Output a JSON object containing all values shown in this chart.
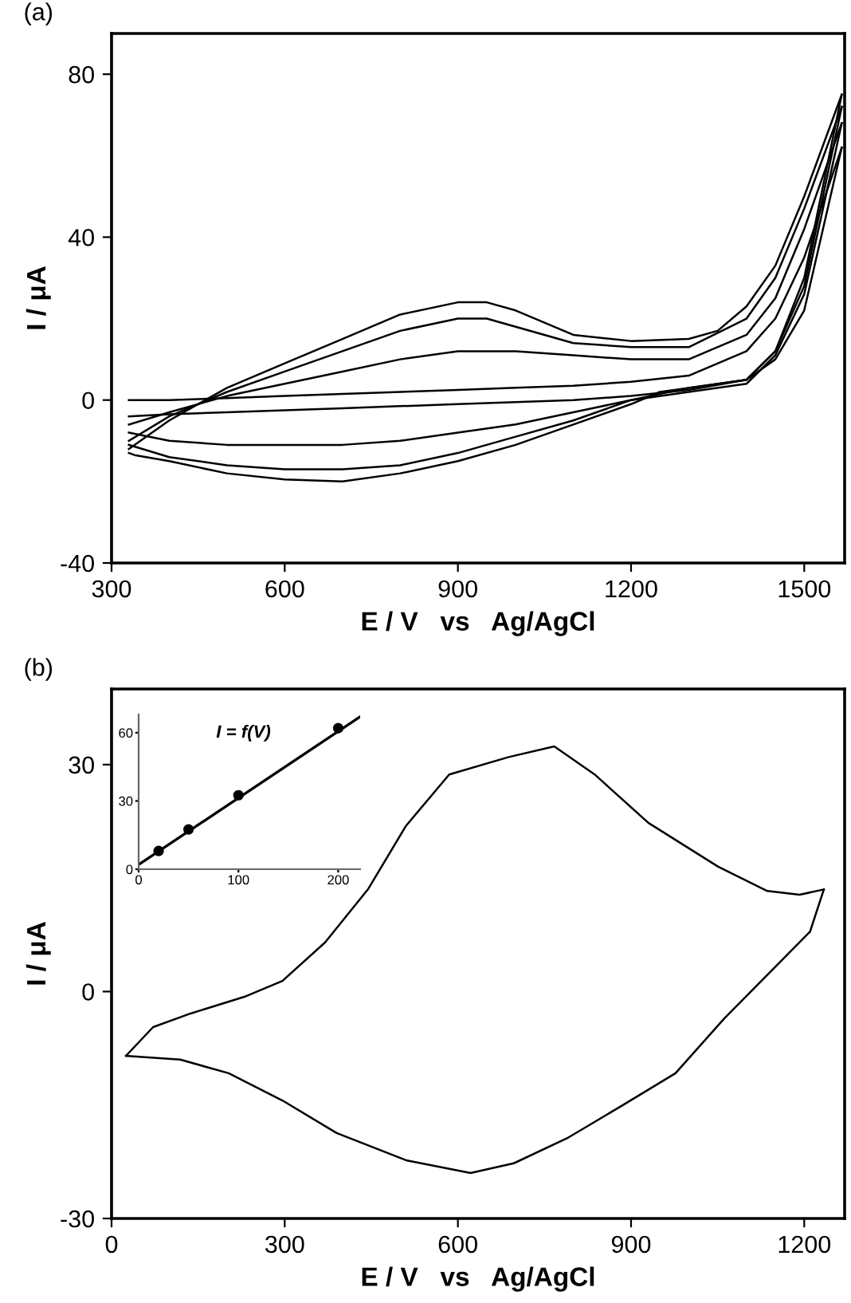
{
  "chart_data": [
    {
      "type": "line",
      "title": "(a)",
      "xlabel": "E / V   vs   Ag/AgCl",
      "ylabel": "I / μA",
      "xlim": [
        300,
        1570
      ],
      "ylim": [
        -40,
        90
      ],
      "xticks": [
        300,
        600,
        900,
        1200,
        1500
      ],
      "yticks": [
        -40,
        0,
        40,
        80
      ],
      "grid": false,
      "legend": false,
      "marker": "none",
      "line_style": "solid",
      "series": [
        {
          "color": "#000000",
          "x": [
            330,
            400,
            500,
            600,
            700,
            800,
            900,
            1000,
            1100,
            1200,
            1300,
            1400,
            1450,
            1500,
            1565
          ],
          "values": [
            0,
            0,
            0.5,
            1,
            1.5,
            2,
            2.5,
            3,
            3.5,
            4.5,
            6,
            12,
            20,
            35,
            62
          ]
        },
        {
          "color": "#000000",
          "x": [
            1565,
            1500,
            1450,
            1400,
            1300,
            1200,
            1100,
            1000,
            900,
            800,
            700,
            600,
            500,
            400,
            330
          ],
          "values": [
            62,
            22,
            10,
            5,
            2.5,
            1,
            0,
            -0.5,
            -1,
            -1.5,
            -2,
            -2.5,
            -3,
            -3.5,
            -4
          ]
        },
        {
          "color": "#000000",
          "x": [
            330,
            400,
            500,
            600,
            700,
            800,
            900,
            1000,
            1100,
            1200,
            1300,
            1400,
            1450,
            1500,
            1565
          ],
          "values": [
            -6,
            -3,
            1,
            4,
            7,
            10,
            12,
            12,
            11,
            10,
            10,
            16,
            25,
            42,
            68
          ]
        },
        {
          "color": "#000000",
          "x": [
            1565,
            1500,
            1450,
            1400,
            1300,
            1200,
            1100,
            1000,
            900,
            800,
            700,
            600,
            500,
            400,
            330
          ],
          "values": [
            68,
            26,
            11,
            4,
            2,
            0,
            -3,
            -6,
            -8,
            -10,
            -11,
            -11,
            -11,
            -10,
            -8
          ]
        },
        {
          "color": "#000000",
          "x": [
            330,
            400,
            500,
            600,
            700,
            800,
            900,
            950,
            1000,
            1100,
            1200,
            1300,
            1400,
            1450,
            1500,
            1565
          ],
          "values": [
            -10,
            -4,
            2,
            7,
            12,
            17,
            20,
            20,
            18,
            14,
            13,
            13,
            20,
            30,
            47,
            72
          ]
        },
        {
          "color": "#000000",
          "x": [
            1565,
            1500,
            1450,
            1400,
            1300,
            1200,
            1100,
            1000,
            900,
            800,
            700,
            600,
            500,
            400,
            330
          ],
          "values": [
            72,
            28,
            12,
            5,
            3,
            0,
            -5,
            -9,
            -13,
            -16,
            -17,
            -17,
            -16,
            -14,
            -11
          ]
        },
        {
          "color": "#000000",
          "x": [
            330,
            400,
            500,
            600,
            700,
            800,
            900,
            950,
            1000,
            1050,
            1100,
            1200,
            1300,
            1350,
            1400,
            1450,
            1500,
            1565
          ],
          "values": [
            -12,
            -5,
            3,
            9,
            15,
            21,
            24,
            24,
            22,
            19,
            16,
            14.5,
            15,
            17,
            23,
            33,
            50,
            75
          ]
        },
        {
          "color": "#000000",
          "x": [
            1565,
            1500,
            1450,
            1400,
            1300,
            1250,
            1200,
            1100,
            1000,
            900,
            800,
            700,
            600,
            500,
            400,
            340,
            330
          ],
          "values": [
            75,
            30,
            12,
            5,
            3,
            2,
            -1,
            -6,
            -11,
            -15,
            -18,
            -20,
            -19.5,
            -18,
            -15,
            -13.5,
            -13
          ]
        }
      ]
    },
    {
      "type": "line",
      "title": "(b)",
      "xlabel": "E / V   vs   Ag/AgCl",
      "ylabel": "I / μA",
      "xlim": [
        0,
        1270
      ],
      "ylim": [
        -30,
        40
      ],
      "xticks": [
        0,
        300,
        600,
        900,
        1200
      ],
      "yticks": [
        -30,
        0,
        30
      ],
      "grid": false,
      "legend": false,
      "marker": "none",
      "line_style": "solid",
      "series": [
        {
          "color": "#000000",
          "x": [
            25,
            72,
            137,
            230,
            296,
            370,
            445,
            510,
            585,
            688,
            767,
            837,
            930,
            1051,
            1136,
            1192,
            1234
          ],
          "values": [
            -8.5,
            -4.7,
            -2.9,
            -0.7,
            1.4,
            6.5,
            13.6,
            21.9,
            28.7,
            31,
            32.4,
            28.7,
            22.3,
            16.5,
            13.3,
            12.8,
            13.5
          ]
        },
        {
          "color": "#000000",
          "x": [
            1234,
            1210,
            1136,
            1061,
            977,
            884,
            789,
            697,
            622,
            510,
            390,
            296,
            203,
            119,
            25
          ],
          "values": [
            13.5,
            7.9,
            2.2,
            -3.6,
            -10.8,
            -15.1,
            -19.4,
            -22.7,
            -24,
            -22.3,
            -18.7,
            -14.4,
            -10.8,
            -9,
            -8.5
          ]
        }
      ]
    },
    {
      "type": "scatter",
      "annotations": [
        "I = f(V)"
      ],
      "xlim": [
        0,
        222
      ],
      "ylim": [
        0,
        68
      ],
      "xticks": [
        0,
        100,
        200
      ],
      "yticks": [
        0,
        30,
        60
      ],
      "grid": false,
      "legend": false,
      "marker": "circle",
      "series": [
        {
          "color": "#000000",
          "x": [
            20,
            50,
            100,
            200
          ],
          "values": [
            8,
            17.5,
            32.5,
            62
          ]
        },
        {
          "type": "line",
          "marker": "none",
          "color": "#000000",
          "x": [
            0,
            222
          ],
          "values": [
            2,
            67
          ]
        }
      ]
    }
  ]
}
